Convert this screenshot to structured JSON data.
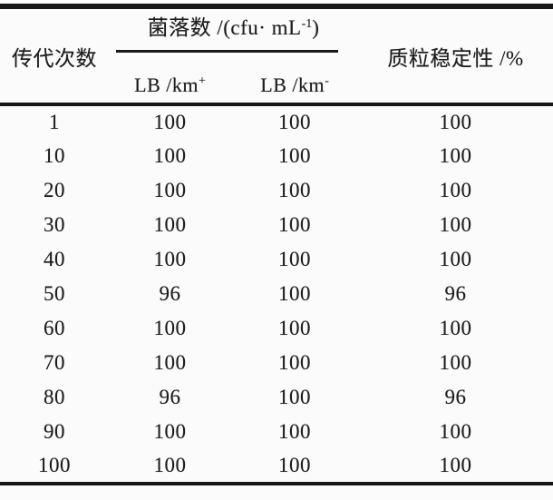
{
  "page": {
    "background_color": "#fbfbfb",
    "rule_color": "#161616",
    "text_color": "#1d1d1d"
  },
  "table": {
    "header": {
      "generation": "传代次数",
      "colony": {
        "prefix": "菌落数 /(cfu· mL",
        "sup": "-1",
        "suffix": ")"
      },
      "lb_plus": {
        "base": "LB /km",
        "sup": "+"
      },
      "lb_minus": {
        "base": "LB /km",
        "sup": "-"
      },
      "stability": "质粒稳定性 /%"
    },
    "rows": [
      {
        "generation": "1",
        "lb_plus": "100",
        "lb_minus": "100",
        "stability": "100"
      },
      {
        "generation": "10",
        "lb_plus": "100",
        "lb_minus": "100",
        "stability": "100"
      },
      {
        "generation": "20",
        "lb_plus": "100",
        "lb_minus": "100",
        "stability": "100"
      },
      {
        "generation": "30",
        "lb_plus": "100",
        "lb_minus": "100",
        "stability": "100"
      },
      {
        "generation": "40",
        "lb_plus": "100",
        "lb_minus": "100",
        "stability": "100"
      },
      {
        "generation": "50",
        "lb_plus": "96",
        "lb_minus": "100",
        "stability": "96"
      },
      {
        "generation": "60",
        "lb_plus": "100",
        "lb_minus": "100",
        "stability": "100"
      },
      {
        "generation": "70",
        "lb_plus": "100",
        "lb_minus": "100",
        "stability": "100"
      },
      {
        "generation": "80",
        "lb_plus": "96",
        "lb_minus": "100",
        "stability": "96"
      },
      {
        "generation": "90",
        "lb_plus": "100",
        "lb_minus": "100",
        "stability": "100"
      },
      {
        "generation": "100",
        "lb_plus": "100",
        "lb_minus": "100",
        "stability": "100"
      }
    ]
  }
}
